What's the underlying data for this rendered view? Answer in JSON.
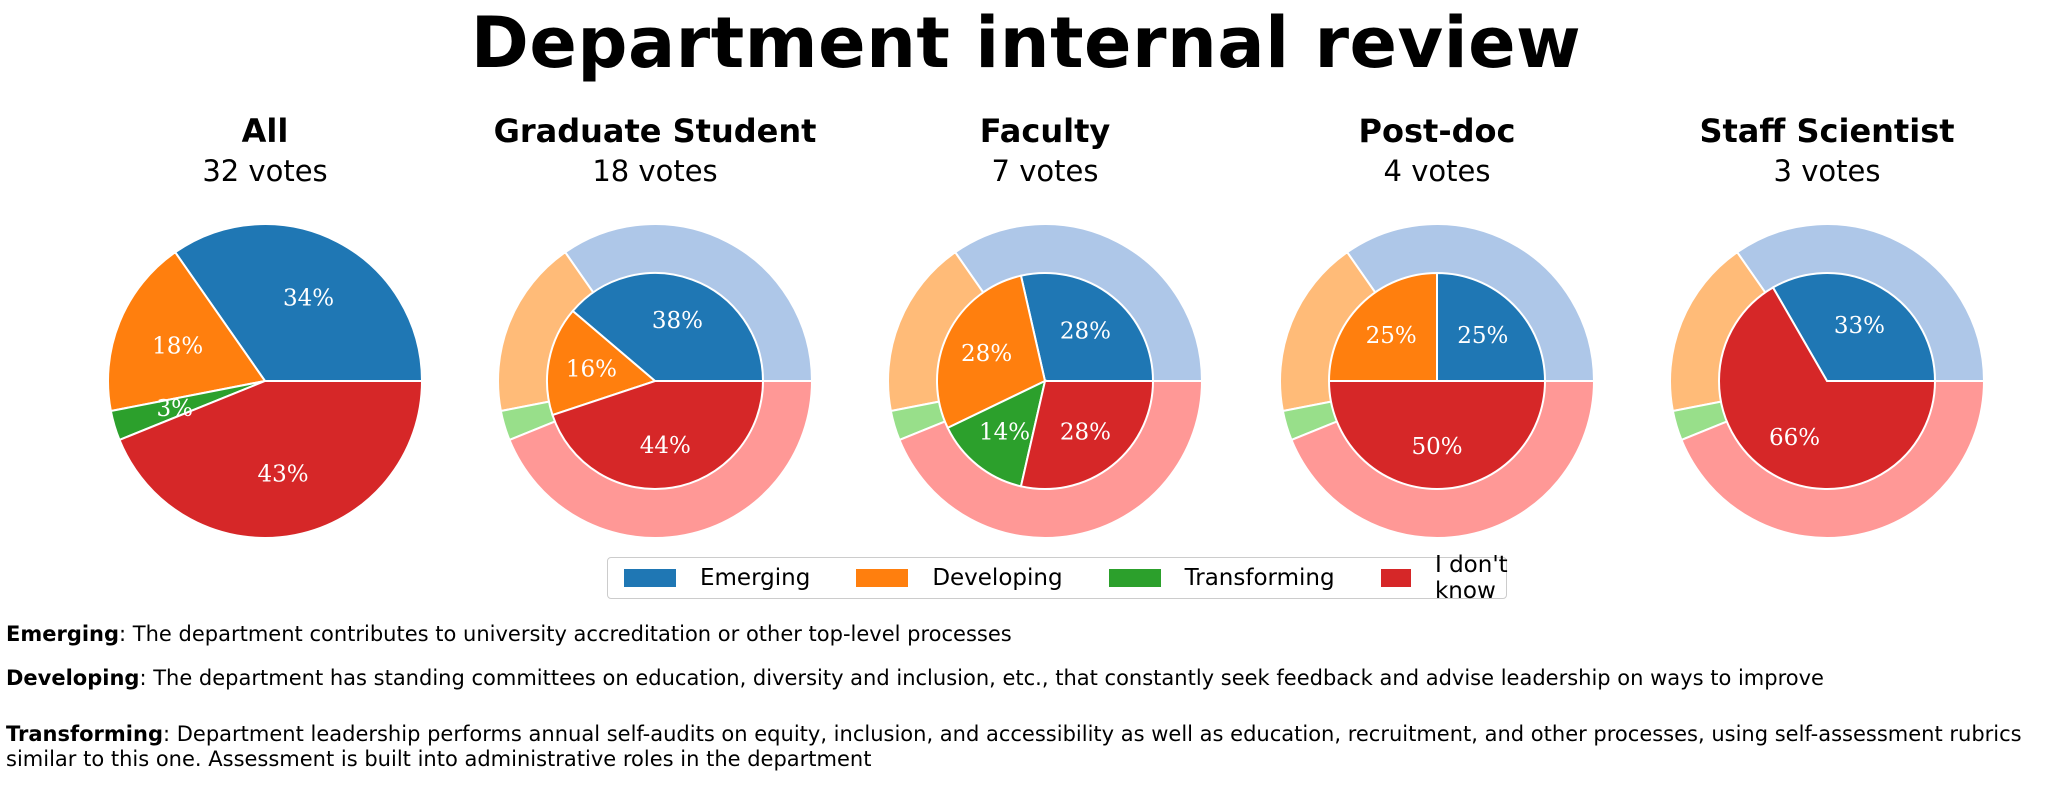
{
  "title": "Department internal review",
  "colors": {
    "Emerging": "#1f77b4",
    "Developing": "#ff7f0e",
    "Transforming": "#2ca02c",
    "I don't know": "#d62728",
    "Emerging_light": "#aec7e8",
    "Developing_light": "#ffbb78",
    "Transforming_light": "#98df8a",
    "I don't know_light": "#ff9896"
  },
  "legend": [
    "Emerging",
    "Developing",
    "Transforming",
    "I don't know"
  ],
  "chart_data": [
    {
      "type": "pie",
      "title": "All",
      "subtitle": "32 votes",
      "categories": [
        "Emerging",
        "Developing",
        "Transforming",
        "I don't know"
      ],
      "values": [
        34,
        18,
        3,
        43
      ],
      "labels": [
        "34%",
        "18%",
        "3%",
        "43%"
      ]
    },
    {
      "type": "pie",
      "title": "Graduate Student",
      "subtitle": "18 votes",
      "categories": [
        "Emerging",
        "Developing",
        "Transforming",
        "I don't know"
      ],
      "values": [
        38,
        16,
        0,
        44
      ],
      "labels": [
        "38%",
        "16%",
        "",
        "44%"
      ],
      "outer_reference": [
        34,
        18,
        3,
        43
      ]
    },
    {
      "type": "pie",
      "title": "Faculty",
      "subtitle": "7 votes",
      "categories": [
        "Emerging",
        "Developing",
        "Transforming",
        "I don't know"
      ],
      "values": [
        28,
        28,
        14,
        28
      ],
      "labels": [
        "28%",
        "28%",
        "14%",
        "28%"
      ],
      "outer_reference": [
        34,
        18,
        3,
        43
      ]
    },
    {
      "type": "pie",
      "title": "Post-doc",
      "subtitle": "4 votes",
      "categories": [
        "Emerging",
        "Developing",
        "Transforming",
        "I don't know"
      ],
      "values": [
        25,
        25,
        0,
        50
      ],
      "labels": [
        "25%",
        "25%",
        "",
        "50%"
      ],
      "outer_reference": [
        34,
        18,
        3,
        43
      ]
    },
    {
      "type": "pie",
      "title": "Staff Scientist",
      "subtitle": "3 votes",
      "categories": [
        "Emerging",
        "Developing",
        "Transforming",
        "I don't know"
      ],
      "values": [
        33,
        0,
        0,
        66
      ],
      "labels": [
        "33%",
        "",
        "",
        "66%"
      ],
      "outer_reference": [
        34,
        18,
        3,
        43
      ]
    }
  ],
  "definitions": [
    {
      "term": "Emerging",
      "text": ": The department contributes to university accreditation or other top-level processes"
    },
    {
      "term": "Developing",
      "text": ": The department has standing committees on education, diversity and inclusion, etc., that constantly seek feedback and advise leadership on ways to improve"
    },
    {
      "term": "Transforming",
      "text": ": Department leadership performs annual self-audits on equity, inclusion, and accessibility as well as education, recruitment, and other processes, using self-assessment rubrics similar to this one. Assessment is built into administrative roles in the department"
    }
  ]
}
